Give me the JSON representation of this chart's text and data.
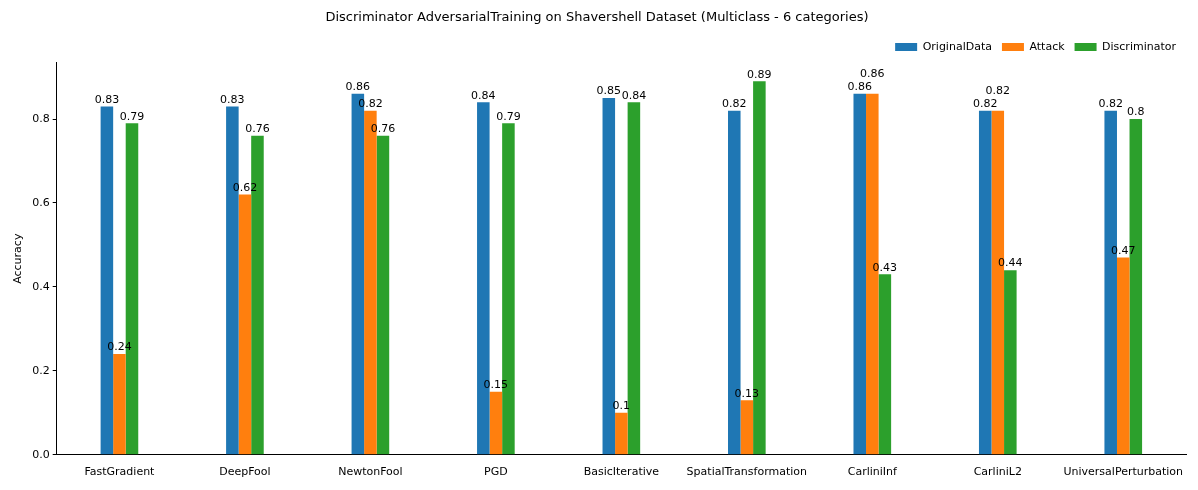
{
  "chart_data": {
    "type": "bar",
    "title": "Discriminator AdversarialTraining on Shavershell Dataset (Multiclass - 6 categories)",
    "ylabel": "Accuracy",
    "categories": [
      "FastGradient",
      "DeepFool",
      "NewtonFool",
      "PGD",
      "BasicIterative",
      "SpatialTransformation",
      "CarliniInf",
      "CarliniL2",
      "UniversalPerturbation"
    ],
    "series": [
      {
        "name": "OriginalData",
        "color": "#1f77b4",
        "values": [
          0.83,
          0.83,
          0.86,
          0.84,
          0.85,
          0.82,
          0.86,
          0.82,
          0.82
        ]
      },
      {
        "name": "Attack",
        "color": "#ff7f0e",
        "values": [
          0.24,
          0.62,
          0.82,
          0.15,
          0.1,
          0.13,
          0.86,
          0.82,
          0.47
        ]
      },
      {
        "name": "Discriminator",
        "color": "#2ca02c",
        "values": [
          0.79,
          0.76,
          0.76,
          0.79,
          0.84,
          0.89,
          0.43,
          0.44,
          0.8
        ]
      }
    ],
    "ylim": [
      0,
      0.9345
    ],
    "yticks": [
      {
        "value": 0,
        "label": "0.0"
      },
      0.2,
      0.4,
      0.6,
      0.8
    ],
    "data_labels": true,
    "legend": "top right",
    "grid": false
  }
}
